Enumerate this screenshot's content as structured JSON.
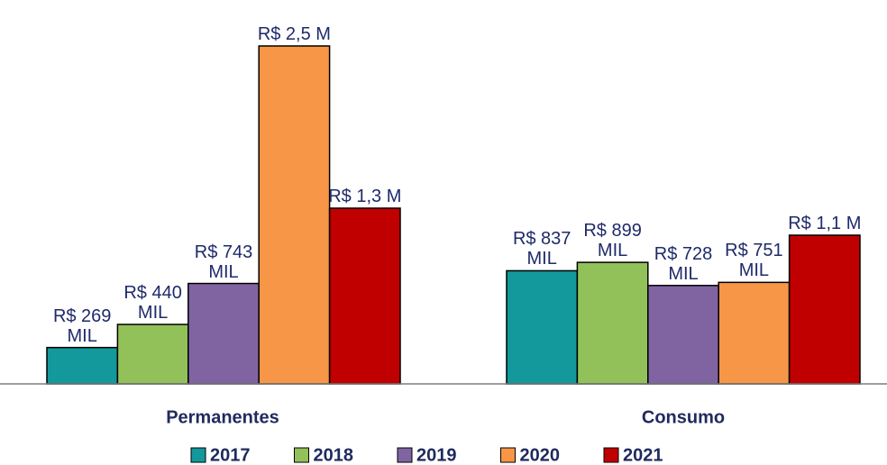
{
  "chart_data": {
    "type": "bar",
    "categories": [
      "Permanentes",
      "Consumo"
    ],
    "series": [
      {
        "name": "2017",
        "color": "#13999b",
        "values": [
          269000,
          837000
        ],
        "value_labels": [
          "R$ 269 MIL",
          "R$ 837 MIL"
        ]
      },
      {
        "name": "2018",
        "color": "#92c15a",
        "values": [
          440000,
          899000
        ],
        "value_labels": [
          "R$ 440 MIL",
          "R$ 899 MIL"
        ]
      },
      {
        "name": "2019",
        "color": "#8064a2",
        "values": [
          743000,
          728000
        ],
        "value_labels": [
          "R$ 743 MIL",
          "R$ 728 MIL"
        ]
      },
      {
        "name": "2020",
        "color": "#f79646",
        "values": [
          2500000,
          751000
        ],
        "value_labels": [
          "R$ 2,5 M",
          "R$ 751 MIL"
        ]
      },
      {
        "name": "2021",
        "color": "#c00000",
        "values": [
          1300000,
          1100000
        ],
        "value_labels": [
          "R$ 1,3 M",
          "R$ 1,1 M"
        ]
      }
    ],
    "ylim": [
      0,
      2800000
    ],
    "legend": "bottom"
  }
}
